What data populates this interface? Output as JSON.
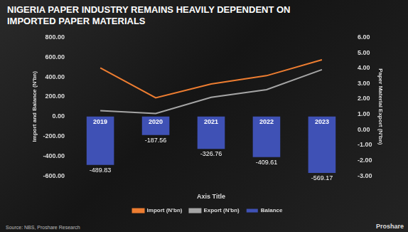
{
  "chart_data": {
    "type": "bar",
    "title": "NIGERIA PAPER INDUSTRY REMAINS HEAVILY DEPENDENT ON IMPORTED PAPER MATERIALS",
    "x_label": "Axis Title",
    "y_label": "Import and Balance (N'bn)",
    "y2_label": "Paper Material Export (N'bn)",
    "source": "Source: NBS, Proshare Research",
    "brand": "Proshare",
    "categories": [
      "2019",
      "2020",
      "2021",
      "2022",
      "2023"
    ],
    "series": [
      {
        "name": "Balance",
        "type": "bar",
        "color": "#3f51b5",
        "data_labels": true,
        "values": [
          -489.83,
          -187.56,
          -326.76,
          -409.61,
          -569.17
        ]
      },
      {
        "name": "Import (N'bn)",
        "type": "line",
        "color": "#ed7d31",
        "values": [
          491.07,
          188.61,
          328.86,
          412.21,
          573.07
        ]
      },
      {
        "name": "Export (N'bn)",
        "type": "line",
        "color": "#a5a5a5",
        "axis": "y2",
        "values": [
          1.24,
          1.05,
          2.1,
          2.6,
          3.9
        ]
      }
    ],
    "ylim": [
      -600,
      800
    ],
    "yticks": [
      {
        "value": -600,
        "label": "-600.00"
      },
      {
        "value": -400,
        "label": "-400.00"
      },
      {
        "value": -200,
        "label": "-200.00"
      },
      {
        "value": 0,
        "label": "0.00"
      },
      {
        "value": 200,
        "label": "200.00"
      },
      {
        "value": 400,
        "label": "400.00"
      },
      {
        "value": 600,
        "label": "600.00"
      },
      {
        "value": 800,
        "label": "800.00"
      }
    ],
    "y2lim": [
      -3,
      6
    ],
    "y2ticks": [
      {
        "value": -3,
        "label": "-3.00"
      },
      {
        "value": -2,
        "label": "-2.00"
      },
      {
        "value": -1,
        "label": "-1.00"
      },
      {
        "value": 0,
        "label": "0.00"
      },
      {
        "value": 1,
        "label": "1.00"
      },
      {
        "value": 2,
        "label": "2.00"
      },
      {
        "value": 3,
        "label": "3.00"
      },
      {
        "value": 4,
        "label": "4.00"
      },
      {
        "value": 5,
        "label": "5.00"
      },
      {
        "value": 6,
        "label": "6.00"
      }
    ],
    "grid": false,
    "legend": "bottom"
  }
}
